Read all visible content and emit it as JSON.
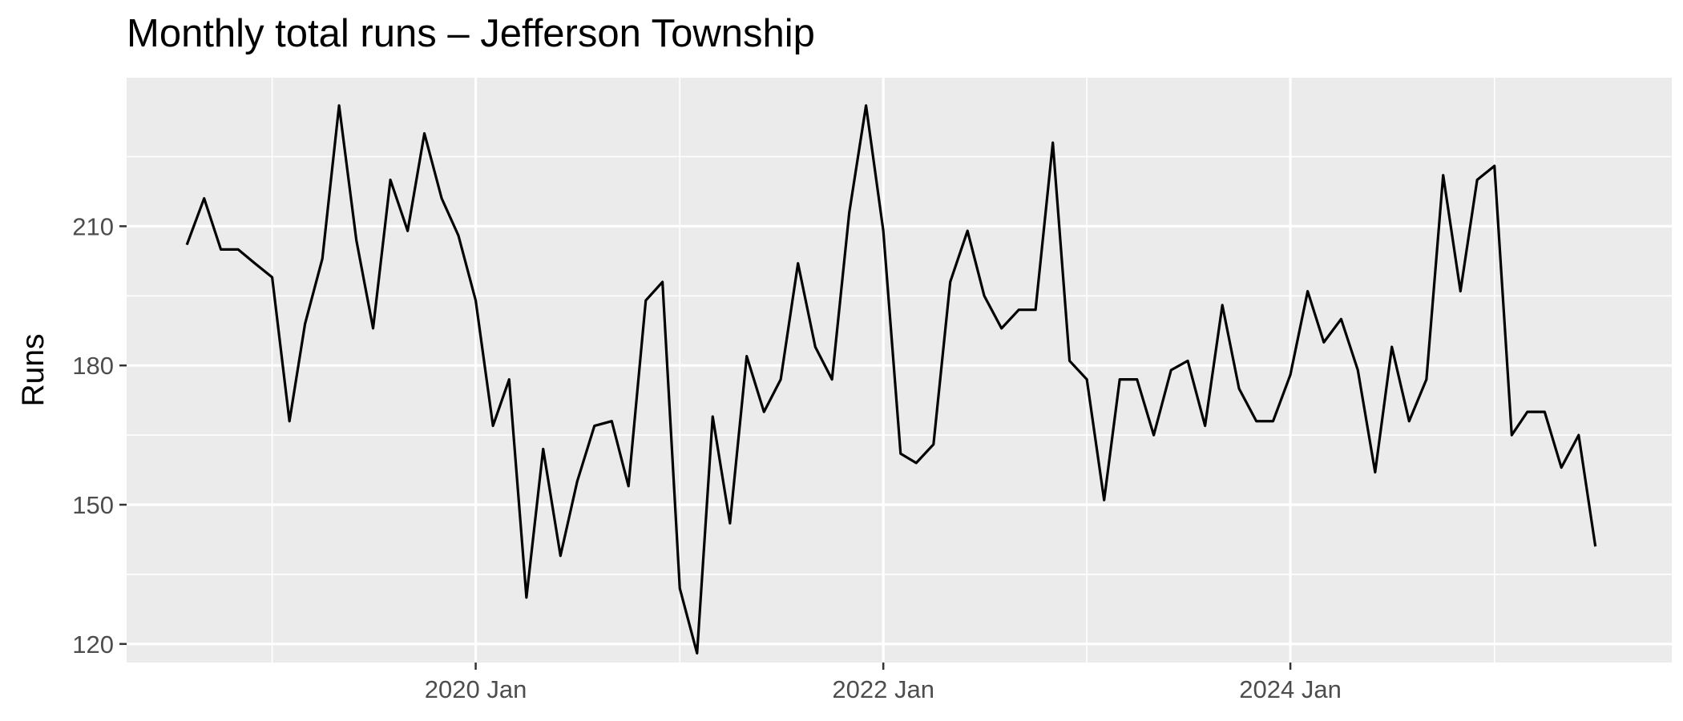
{
  "chart_data": {
    "type": "line",
    "title": "Monthly total runs – Jefferson Township",
    "xlabel": "",
    "ylabel": "Runs",
    "x_start": "2018-08",
    "x_end": "2025-07",
    "xlim": [
      "2018-04-15",
      "2025-11-15"
    ],
    "ylim": [
      116,
      242
    ],
    "x_ticks": [
      {
        "date": "2020-01",
        "label": "2020 Jan"
      },
      {
        "date": "2022-01",
        "label": "2022 Jan"
      },
      {
        "date": "2024-01",
        "label": "2024 Jan"
      }
    ],
    "x_minor_ticks": [
      "2019-01",
      "2021-01",
      "2023-01",
      "2025-01"
    ],
    "y_ticks": [
      120,
      150,
      180,
      210
    ],
    "y_minor_ticks": [
      135,
      165,
      195,
      225
    ],
    "grid": true,
    "background": "#ebebeb",
    "line_color": "#000000",
    "series": [
      {
        "values": [
          206,
          216,
          205,
          205,
          202,
          199,
          168,
          189,
          203,
          236,
          207,
          188,
          220,
          209,
          230,
          216,
          208,
          194,
          167,
          177,
          130,
          162,
          139,
          155,
          167,
          168,
          154,
          194,
          198,
          132,
          118,
          169,
          146,
          182,
          170,
          177,
          202,
          184,
          177,
          213,
          236,
          209,
          161,
          159,
          163,
          198,
          209,
          195,
          188,
          192,
          192,
          228,
          181,
          177,
          151,
          177,
          177,
          165,
          179,
          181,
          167,
          193,
          175,
          168,
          168,
          178,
          196,
          185,
          190,
          179,
          157,
          184,
          168,
          177,
          221,
          196,
          220,
          223,
          165,
          170,
          170,
          158,
          165,
          141
        ]
      }
    ]
  }
}
